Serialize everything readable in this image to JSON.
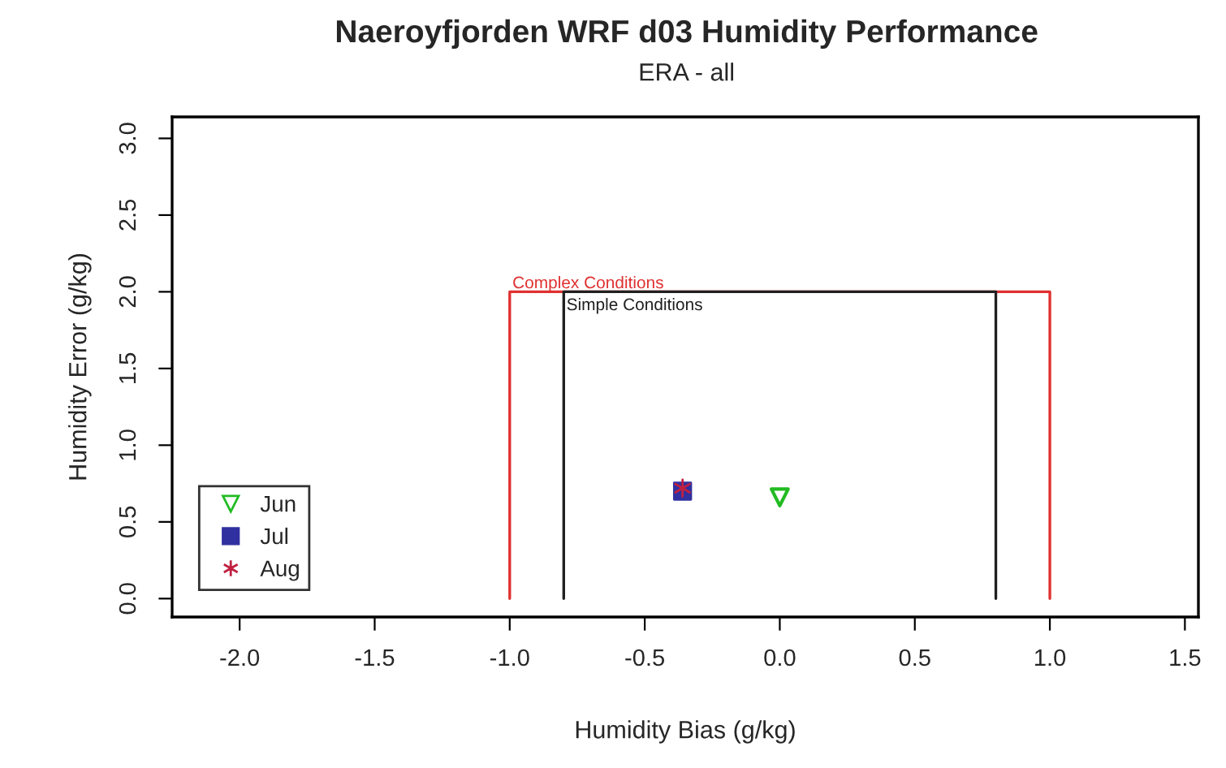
{
  "chart_data": {
    "type": "scatter",
    "title": "Naeroyfjorden WRF d03 Humidity Performance",
    "subtitle": "ERA - all",
    "xlabel": "Humidity Bias (g/kg)",
    "ylabel": "Humidity Error (g/kg)",
    "xlim": [
      -2.25,
      1.55
    ],
    "xticks": [
      {
        "value": -2.0,
        "label": "-2.0"
      },
      {
        "value": -1.5,
        "label": "-1.5"
      },
      {
        "value": -1.0,
        "label": "-1.0"
      },
      {
        "value": -0.5,
        "label": "-0.5"
      },
      {
        "value": 0.0,
        "label": "0.0"
      },
      {
        "value": 0.5,
        "label": "0.5"
      },
      {
        "value": 1.0,
        "label": "1.0"
      },
      {
        "value": 1.5,
        "label": "1.5"
      }
    ],
    "ylim": [
      -0.12,
      3.14
    ],
    "yticks": [
      {
        "value": 0.0,
        "label": "0.0"
      },
      {
        "value": 0.5,
        "label": "0.5"
      },
      {
        "value": 1.0,
        "label": "1.0"
      },
      {
        "value": 1.5,
        "label": "1.5"
      },
      {
        "value": 2.0,
        "label": "2.0"
      },
      {
        "value": 2.5,
        "label": "2.5"
      },
      {
        "value": 3.0,
        "label": "3.0"
      }
    ],
    "grid": false,
    "legend": "bottom left",
    "series": [
      {
        "name": "Complex Conditions",
        "type": "line",
        "color": "#e03030",
        "marker": "none",
        "x": [
          -1.0,
          -1.0,
          1.0,
          1.0
        ],
        "values": [
          0.0,
          2.0,
          2.0,
          0.0
        ]
      },
      {
        "name": "Simple Conditions",
        "type": "line",
        "color": "#202020",
        "marker": "none",
        "x": [
          -0.8,
          -0.8,
          0.8,
          0.8
        ],
        "values": [
          0.0,
          2.0,
          2.0,
          0.0
        ]
      },
      {
        "name": "Jun",
        "color": "#22bb22",
        "marker": "triangle",
        "x": [
          0.0
        ],
        "values": [
          0.66
        ]
      },
      {
        "name": "Jul",
        "color": "#3030a0",
        "marker": "square",
        "x": [
          -0.36
        ],
        "values": [
          0.7
        ]
      },
      {
        "name": "Aug",
        "color": "#c02040",
        "marker": "cross",
        "x": [
          -0.36
        ],
        "values": [
          0.72
        ]
      }
    ]
  }
}
